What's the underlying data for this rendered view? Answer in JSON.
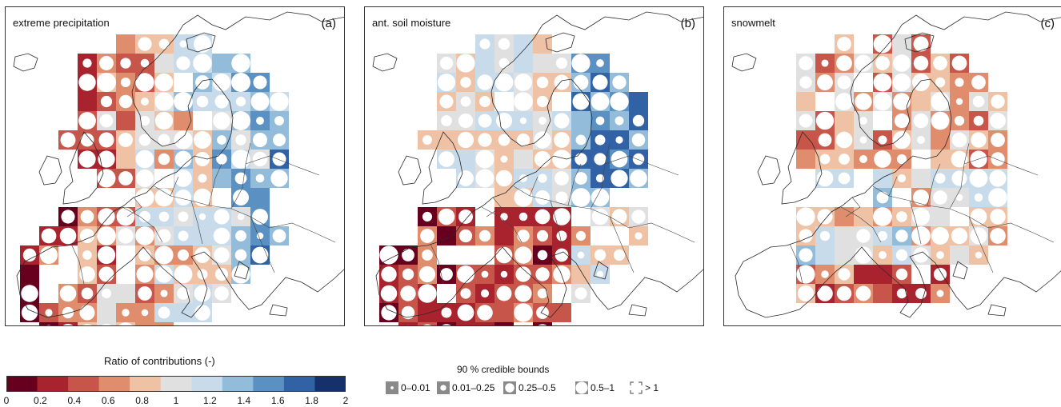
{
  "panels": [
    {
      "title": "extreme precipitation",
      "letter": "(a)",
      "seed": 11
    },
    {
      "title": "ant. soil moisture",
      "letter": "(b)",
      "seed": 29
    },
    {
      "title": "snowmelt",
      "letter": "(c)",
      "seed": 47
    }
  ],
  "colorbar": {
    "title": "Ratio of contributions (-)",
    "ticks": [
      "0",
      "0.2",
      "0.4",
      "0.6",
      "0.8",
      "1",
      "1.2",
      "1.4",
      "1.6",
      "1.8",
      "2"
    ],
    "colors": [
      "#67001f",
      "#a8232e",
      "#c8554a",
      "#e08d6e",
      "#f0c2a5",
      "#e0e0e0",
      "#c7dbeb",
      "#92bcd9",
      "#5b91c2",
      "#3262a6",
      "#16306b"
    ]
  },
  "credible_bounds": {
    "title": "90 % credible bounds",
    "items": [
      {
        "label": "0–0.01",
        "level": 0.05
      },
      {
        "label": "0.01–0.25",
        "level": 0.2
      },
      {
        "label": "0.25–0.5",
        "level": 0.5
      },
      {
        "label": "0.5–1",
        "level": 0.85
      },
      {
        "label": "> 1",
        "level": 1.0
      }
    ]
  }
}
